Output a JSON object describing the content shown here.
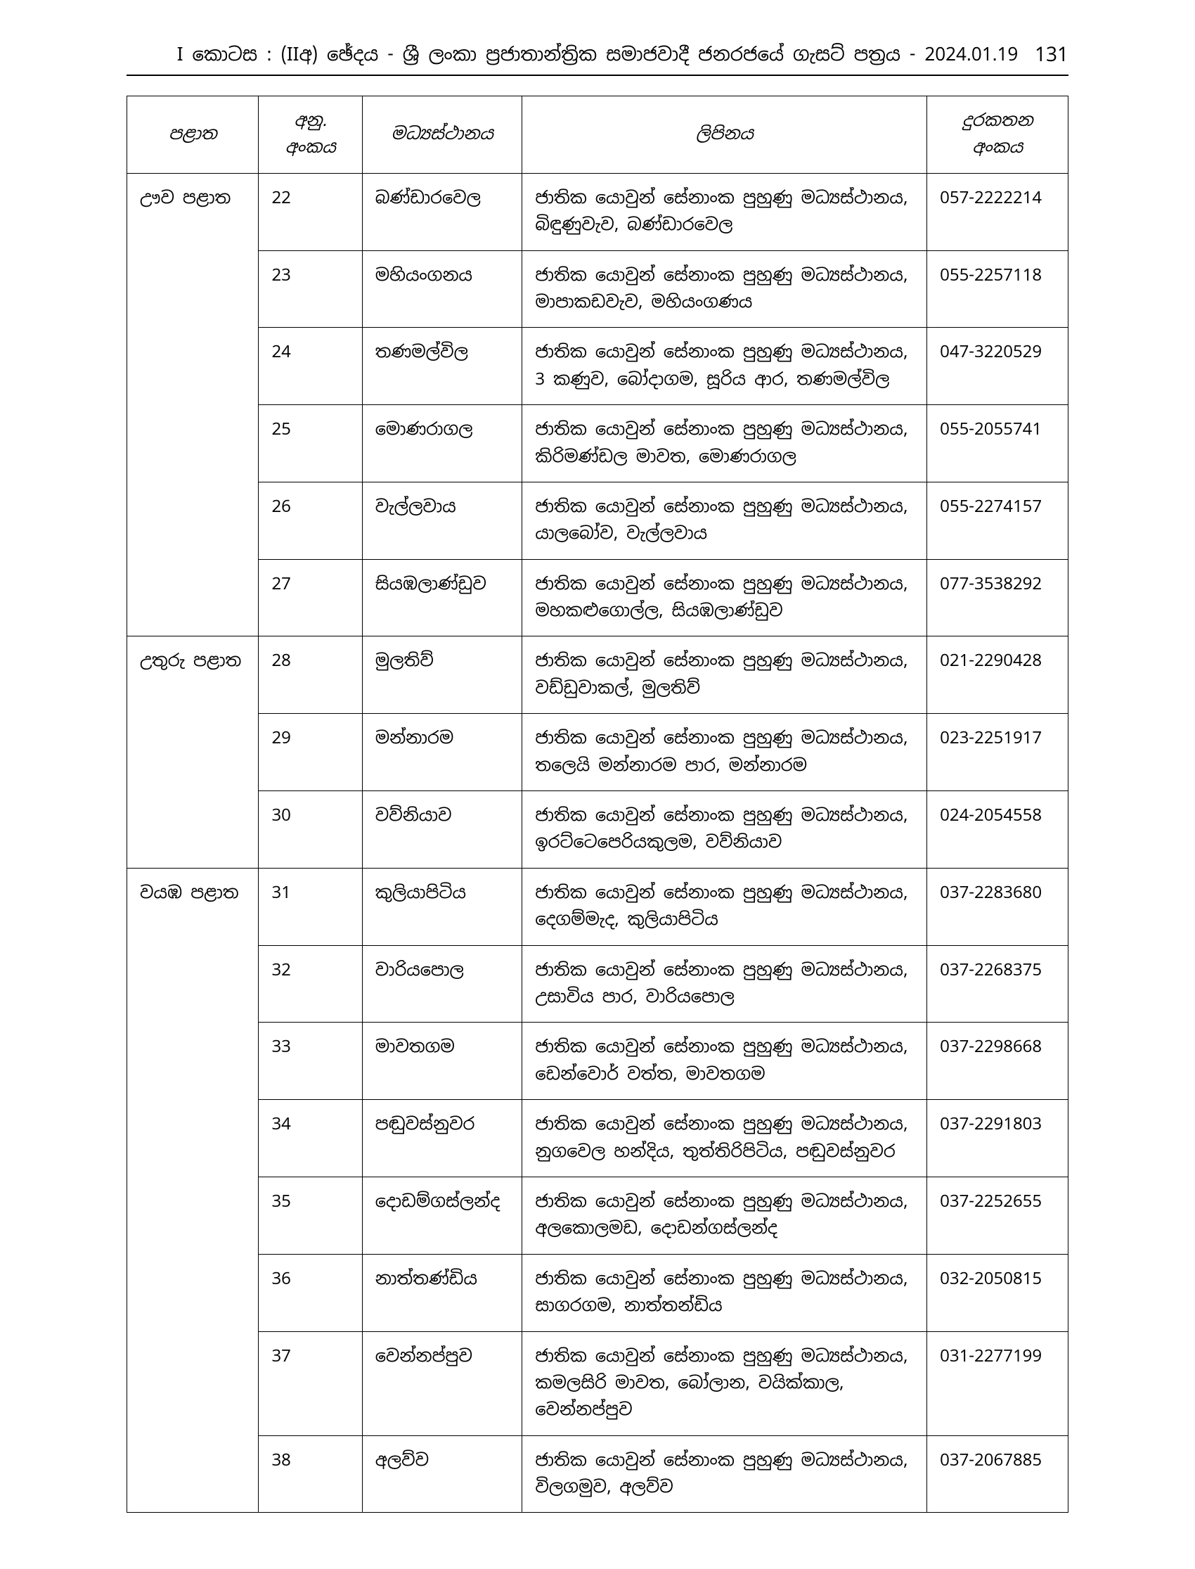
{
  "header": {
    "title": "I කොටස : (IIඅ) ඡේදය - ශ්‍රී ලංකා ප්‍රජාතාන්ත්‍රික සමාජවාදී ජනරජයේ ගැසට් පත්‍රය - 2024.01.19",
    "page_number": "131"
  },
  "table": {
    "columns": {
      "province": "පළාත",
      "seq": "අනු. අංකය",
      "center": "මධ්‍යස්ථානය",
      "address": "ලිපිනය",
      "phone": "දුරකතන අංකය"
    },
    "groups": [
      {
        "province": "ඌව පළාත",
        "rows": [
          {
            "seq": "22",
            "center": "බණ්ඩාරවෙල",
            "address": "ජාතික යොවුන් සේනාංක පුහුණු මධ්‍යස්ථානය, බිඳුණුවැව, බණ්ඩාරවෙල",
            "phone": "057-2222214"
          },
          {
            "seq": "23",
            "center": "මහියංගනය",
            "address": "ජාතික යොවුන් සේනාංක පුහුණු මධ්‍යස්ථානය, මාපාකඩවැව, මහියංගණය",
            "phone": "055-2257118"
          },
          {
            "seq": "24",
            "center": "තණමල්විල",
            "address": "ජාතික යොවුන් සේනාංක පුහුණු මධ්‍යස්ථානය, 3 කණුව, බෝදාගම, සූරිය ආර, තණමල්විල",
            "phone": "047-3220529"
          },
          {
            "seq": "25",
            "center": "මොණරාගල",
            "address": "ජාතික යොවුන් සේනාංක පුහුණු මධ්‍යස්ථානය, කිරිමණ්ඩල මාවත, මොණරාගල",
            "phone": "055-2055741"
          },
          {
            "seq": "26",
            "center": "වැල්ලවාය",
            "address": "ජාතික යොවුන් සේනාංක පුහුණු මධ්‍යස්ථානය, යාලබෝව, වැල්ලවාය",
            "phone": "055-2274157"
          },
          {
            "seq": "27",
            "center": "සියඹලාණ්ඩුව",
            "address": "ජාතික යොවුන් සේනාංක පුහුණු මධ්‍යස්ථානය, මහකළුගොල්ල, සියඹලාණ්ඩුව",
            "phone": "077-3538292"
          }
        ]
      },
      {
        "province": "උතුරු පළාත",
        "rows": [
          {
            "seq": "28",
            "center": "මුලතිව්",
            "address": "ජාතික යොවුන් සේනාංක පුහුණු මධ්‍යස්ථානය, වඩ්ඩුවාකල්, මුලතිව්",
            "phone": "021-2290428"
          },
          {
            "seq": "29",
            "center": "මන්නාරම",
            "address": "ජාතික යොවුන් සේනාංක පුහුණු මධ්‍යස්ථානය, තලෙයි මන්නාරම පාර, මන්නාරම",
            "phone": "023-2251917"
          },
          {
            "seq": "30",
            "center": "වව්නියාව",
            "address": "ජාතික යොවුන් සේනාංක පුහුණු මධ්‍යස්ථානය, ඉරට්ටෙපෙරියකුලම, වව්නියාව",
            "phone": "024-2054558"
          }
        ]
      },
      {
        "province": "වයඹ පළාත",
        "rows": [
          {
            "seq": "31",
            "center": "කුලියාපිටිය",
            "address": "ජාතික යොවුන් සේනාංක පුහුණු මධ්‍යස්ථානය, දෙගම්මැද, කුලියාපිටිය",
            "phone": "037-2283680"
          },
          {
            "seq": "32",
            "center": "වාරියපොල",
            "address": "ජාතික යොවුන් සේනාංක පුහුණු මධ්‍යස්ථානය, උසාවිය පාර, වාරියපොල",
            "phone": "037-2268375"
          },
          {
            "seq": "33",
            "center": "මාවතගම",
            "address": "ජාතික යොවුන් සේනාංක පුහුණු මධ්‍යස්ථානය, ඩෙන්වොර් වත්ත, මාවතගම",
            "phone": "037-2298668"
          },
          {
            "seq": "34",
            "center": "පඬුවස්නුවර",
            "address": "ජාතික යොවුන් සේනාංක පුහුණු මධ්‍යස්ථානය, නුගවෙල හන්දිය, තුත්තිරිපිටිය, පඬුවස්නුවර",
            "phone": "037-2291803"
          },
          {
            "seq": "35",
            "center": "දොඩම්ගස්ලන්ද",
            "address": "ජාතික යොවුන් සේනාංක පුහුණු මධ්‍යස්ථානය, අලකොලමඩ, දොඩන්ගස්ලන්ද",
            "phone": "037-2252655"
          },
          {
            "seq": "36",
            "center": "නාත්තණ්ඩිය",
            "address": "ජාතික යොවුන් සේනාංක පුහුණු මධ්‍යස්ථානය, සාගරගම, නාත්තන්ඩිය",
            "phone": "032-2050815"
          },
          {
            "seq": "37",
            "center": "වෙන්නප්පුව",
            "address": "ජාතික යොවුන් සේනාංක පුහුණු මධ්‍යස්ථානය, කමලසිරි මාවත, බෝලාන, වයික්කාල, වෙන්නප්පුව",
            "phone": "031-2277199"
          },
          {
            "seq": "38",
            "center": "අලව්ව",
            "address": "ජාතික යොවුන් සේනාංක පුහුණු මධ්‍යස්ථානය, විලගමුව, අලව්ව",
            "phone": "037-2067885"
          }
        ]
      }
    ]
  }
}
